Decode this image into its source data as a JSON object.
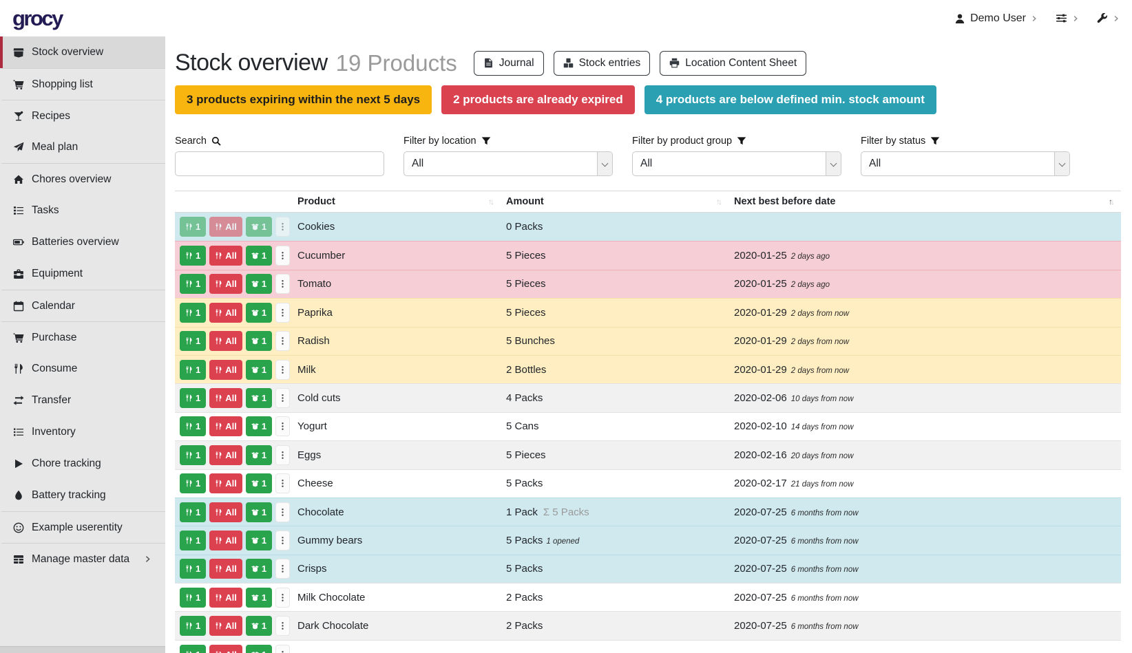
{
  "colors": {
    "logo": "#221b54",
    "accent_red": "#ad2b3e",
    "banner_warning": "#f9b50f",
    "banner_danger": "#d9424e",
    "banner_info": "#2aa0b2",
    "row_info": "#cfe9ef",
    "row_danger": "#f6ced5",
    "row_warning": "#feeec2",
    "btn_green": "#2aa44c",
    "btn_red": "#dc4150"
  },
  "topbar": {
    "logo": "grocy",
    "user": {
      "icon": "user",
      "label": "Demo User"
    },
    "menus": [
      {
        "icon": "sliders",
        "name": "settings-menu"
      },
      {
        "icon": "wrench",
        "name": "admin-menu"
      }
    ]
  },
  "sidebar": {
    "items": [
      {
        "label": "Stock overview",
        "icon": "box",
        "active": true
      },
      {
        "label": "Shopping list",
        "icon": "cart",
        "group_start": true
      },
      {
        "label": "Recipes",
        "icon": "cocktail",
        "group_start": true
      },
      {
        "label": "Meal plan",
        "icon": "paper-plane"
      },
      {
        "label": "Chores overview",
        "icon": "home",
        "group_start": true
      },
      {
        "label": "Tasks",
        "icon": "tasks"
      },
      {
        "label": "Batteries overview",
        "icon": "battery"
      },
      {
        "label": "Equipment",
        "icon": "toolbox"
      },
      {
        "label": "Calendar",
        "icon": "calendar",
        "group_start": true
      },
      {
        "label": "Purchase",
        "icon": "cart",
        "group_start": true
      },
      {
        "label": "Consume",
        "icon": "utensils"
      },
      {
        "label": "Transfer",
        "icon": "exchange"
      },
      {
        "label": "Inventory",
        "icon": "list"
      },
      {
        "label": "Chore tracking",
        "icon": "play"
      },
      {
        "label": "Battery tracking",
        "icon": "tint"
      },
      {
        "label": "Example userentity",
        "icon": "smile",
        "group_start": true
      },
      {
        "label": "Manage master data",
        "icon": "table",
        "group_start": true,
        "submenu": true
      }
    ],
    "collapse_icon": "chevron-left"
  },
  "header": {
    "title": "Stock overview",
    "subtitle": "19 Products",
    "buttons": [
      {
        "label": "Journal",
        "icon": "file"
      },
      {
        "label": "Stock entries",
        "icon": "cubes"
      },
      {
        "label": "Location Content Sheet",
        "icon": "print"
      }
    ]
  },
  "banners": [
    {
      "text": "3 products expiring within the next 5 days",
      "style": "warning"
    },
    {
      "text": "2 products are already expired",
      "style": "danger"
    },
    {
      "text": "4 products are below defined min. stock amount",
      "style": "info"
    }
  ],
  "filters": [
    {
      "label": "Search",
      "icon": "search",
      "control": "input",
      "value": "",
      "placeholder": ""
    },
    {
      "label": "Filter by location",
      "icon": "filter",
      "control": "select",
      "value": "All"
    },
    {
      "label": "Filter by product group",
      "icon": "filter",
      "control": "select",
      "value": "All"
    },
    {
      "label": "Filter by status",
      "icon": "filter",
      "control": "select",
      "value": "All"
    }
  ],
  "table": {
    "columns": [
      {
        "label": "",
        "sort": null
      },
      {
        "label": "Product",
        "sort": "none"
      },
      {
        "label": "Amount",
        "sort": "none"
      },
      {
        "label": "Next best before date",
        "sort": "asc"
      }
    ],
    "row_actions": [
      {
        "icon": "utensils",
        "label": "1",
        "style": "green",
        "name": "consume-one-button"
      },
      {
        "icon": "utensils",
        "label": "All",
        "style": "red",
        "name": "consume-all-button"
      },
      {
        "icon": "box-open",
        "label": "1",
        "style": "green",
        "name": "open-one-button"
      },
      {
        "icon": "ellipsis-v",
        "label": "",
        "style": "light",
        "name": "row-menu-button"
      }
    ],
    "rows": [
      {
        "product": "Cookies",
        "amount": "0 Packs",
        "date": "",
        "date_relative": "",
        "status": "info",
        "disabled": true
      },
      {
        "product": "Cucumber",
        "amount": "5 Pieces",
        "date": "2020-01-25",
        "date_relative": "2 days ago",
        "status": "danger"
      },
      {
        "product": "Tomato",
        "amount": "5 Pieces",
        "date": "2020-01-25",
        "date_relative": "2 days ago",
        "status": "danger"
      },
      {
        "product": "Paprika",
        "amount": "5 Pieces",
        "date": "2020-01-29",
        "date_relative": "2 days from now",
        "status": "warning"
      },
      {
        "product": "Radish",
        "amount": "5 Bunches",
        "date": "2020-01-29",
        "date_relative": "2 days from now",
        "status": "warning"
      },
      {
        "product": "Milk",
        "amount": "2 Bottles",
        "date": "2020-01-29",
        "date_relative": "2 days from now",
        "status": "warning"
      },
      {
        "product": "Cold cuts",
        "amount": "4 Packs",
        "date": "2020-02-06",
        "date_relative": "10 days from now",
        "status": "stripe"
      },
      {
        "product": "Yogurt",
        "amount": "5 Cans",
        "date": "2020-02-10",
        "date_relative": "14 days from now",
        "status": "none"
      },
      {
        "product": "Eggs",
        "amount": "5 Pieces",
        "date": "2020-02-16",
        "date_relative": "20 days from now",
        "status": "stripe"
      },
      {
        "product": "Cheese",
        "amount": "5 Packs",
        "date": "2020-02-17",
        "date_relative": "21 days from now",
        "status": "none"
      },
      {
        "product": "Chocolate",
        "amount": "1 Pack",
        "amount_sum": "Σ 5 Packs",
        "date": "2020-07-25",
        "date_relative": "6 months from now",
        "status": "info"
      },
      {
        "product": "Gummy bears",
        "amount": "5 Packs",
        "amount_note": "1 opened",
        "date": "2020-07-25",
        "date_relative": "6 months from now",
        "status": "info"
      },
      {
        "product": "Crisps",
        "amount": "5 Packs",
        "date": "2020-07-25",
        "date_relative": "6 months from now",
        "status": "info"
      },
      {
        "product": "Milk Chocolate",
        "amount": "2 Packs",
        "date": "2020-07-25",
        "date_relative": "6 months from now",
        "status": "none"
      },
      {
        "product": "Dark Chocolate",
        "amount": "2 Packs",
        "date": "2020-07-25",
        "date_relative": "6 months from now",
        "status": "stripe"
      },
      {
        "product": "",
        "amount": "",
        "date": "",
        "date_relative": "",
        "status": "none"
      }
    ]
  }
}
